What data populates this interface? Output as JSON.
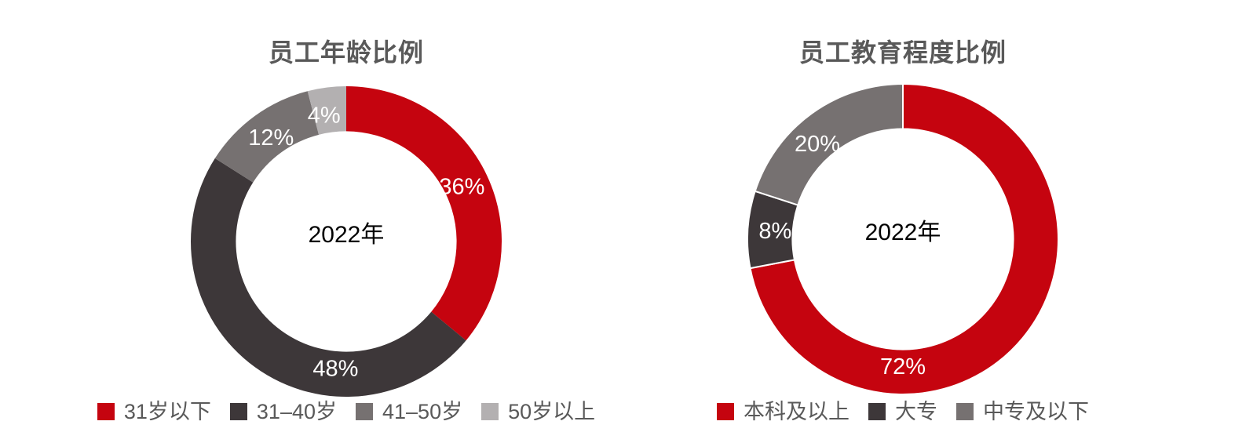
{
  "style": {
    "title_color": "#595959",
    "legend_text_color": "#595959",
    "value_label_color": "#FFFFFF",
    "center_label_color": "#000000",
    "background": "#FFFFFF",
    "accent_red": "#C5040F",
    "dark_gray": "#3D3739",
    "mid_gray": "#767171",
    "light_gray": "#B3B0B1"
  },
  "chart_data": [
    {
      "type": "pie",
      "subtype": "donut",
      "title": "员工年龄比例",
      "center_label": "2022年",
      "categories": [
        "31岁以下",
        "31–40岁",
        "41–50岁",
        "50岁以上"
      ],
      "values": [
        36,
        48,
        12,
        4
      ],
      "value_labels": [
        "36%",
        "48%",
        "12%",
        "4%"
      ],
      "colors": [
        "#C5040F",
        "#3D3739",
        "#767171",
        "#B3B0B1"
      ],
      "legend_position": "bottom",
      "start_angle_deg": 0,
      "direction": "clockwise",
      "hole_ratio": 0.71,
      "label_radius_ratio": 0.823,
      "label_angles_deg": [
        64.8,
        184.8,
        324,
        350
      ],
      "slice_border_width": 0,
      "slice_border_color": "#FFFFFF"
    },
    {
      "type": "pie",
      "subtype": "donut",
      "title": "员工教育程度比例",
      "center_label": "2022年",
      "categories": [
        "本科及以上",
        "大专",
        "中专及以下"
      ],
      "values": [
        72,
        8,
        20
      ],
      "value_labels": [
        "72%",
        "8%",
        "20%"
      ],
      "colors": [
        "#C5040F",
        "#3D3739",
        "#767171"
      ],
      "legend_position": "bottom",
      "start_angle_deg": 0,
      "direction": "clockwise",
      "hole_ratio": 0.71,
      "label_radius_ratio": 0.823,
      "label_angles_deg": [
        180,
        273.6,
        318
      ],
      "slice_border_width": 2,
      "slice_border_color": "#FFFFFF"
    }
  ]
}
